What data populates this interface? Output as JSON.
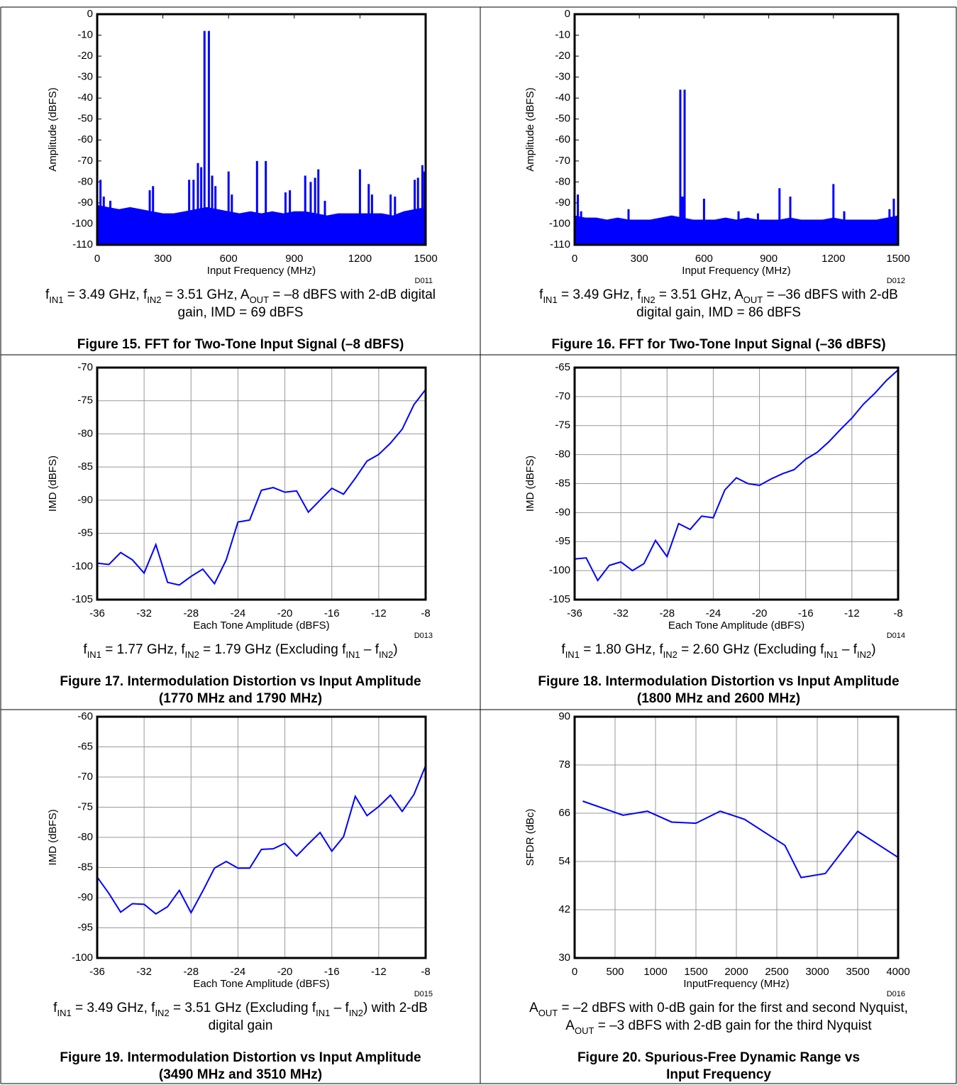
{
  "chart_data": [
    {
      "type": "spectrum",
      "code": "D011",
      "grid": false,
      "color": "#0000ff",
      "xlabel": "Input Frequency (MHz)",
      "ylabel": "Amplitude (dBFS)",
      "xlim": [
        0,
        1500
      ],
      "xticks": [
        0,
        300,
        600,
        900,
        1200,
        1500
      ],
      "ylim": [
        -110,
        0
      ],
      "yticks": [
        0,
        -10,
        -20,
        -30,
        -40,
        -50,
        -60,
        -70,
        -80,
        -90,
        -100,
        -110
      ],
      "noise": {
        "x": [
          0,
          50,
          100,
          150,
          200,
          250,
          300,
          350,
          400,
          450,
          500,
          550,
          600,
          650,
          700,
          750,
          800,
          850,
          900,
          950,
          1000,
          1050,
          1100,
          1150,
          1200,
          1250,
          1300,
          1350,
          1400,
          1450,
          1500
        ],
        "values": [
          -91,
          -92,
          -93,
          -92,
          -93,
          -94,
          -95,
          -95,
          -94,
          -93,
          -92,
          -93,
          -94,
          -95,
          -94,
          -95,
          -94,
          -95,
          -94,
          -94,
          -95,
          -96,
          -95,
          -95,
          -95,
          -95,
          -95,
          -96,
          -94,
          -93,
          -92
        ]
      },
      "spurs": {
        "x": [
          15,
          30,
          60,
          240,
          255,
          420,
          440,
          460,
          475,
          490,
          510,
          525,
          540,
          600,
          615,
          730,
          770,
          860,
          880,
          950,
          975,
          995,
          1010,
          1040,
          1200,
          1240,
          1255,
          1340,
          1360,
          1450,
          1465,
          1485,
          1495
        ],
        "values": [
          -79,
          -87,
          -89,
          -84,
          -82,
          -79,
          -79,
          -71,
          -73,
          -8,
          -8,
          -77,
          -82,
          -75,
          -86,
          -70,
          -70,
          -85,
          -84,
          -77,
          -80,
          -78,
          -74,
          -89,
          -74,
          -81,
          -86,
          -86,
          -87,
          -79,
          -78,
          -72,
          -75
        ]
      },
      "caption": [
        [
          {
            "text": "f"
          },
          {
            "sub": "IN1"
          },
          {
            "text": " = 3.49 GHz, f"
          },
          {
            "sub": "IN2"
          },
          {
            "text": " = 3.51 GHz, A"
          },
          {
            "sub": "OUT"
          },
          {
            "text": " = –8 dBFS with 2-dB digital"
          }
        ],
        [
          {
            "text": "gain, IMD = 69 dBFS"
          }
        ]
      ],
      "title": [
        "Figure 15. FFT for Two-Tone Input Signal (–8 dBFS)"
      ]
    },
    {
      "type": "spectrum",
      "code": "D012",
      "grid": false,
      "color": "#0000ff",
      "xlabel": "Input Frequency (MHz)",
      "ylabel": "Amplitude (dBFS)",
      "xlim": [
        0,
        1500
      ],
      "xticks": [
        0,
        300,
        600,
        900,
        1200,
        1500
      ],
      "ylim": [
        -110,
        0
      ],
      "yticks": [
        0,
        -10,
        -20,
        -30,
        -40,
        -50,
        -60,
        -70,
        -80,
        -90,
        -100,
        -110
      ],
      "noise": {
        "x": [
          0,
          50,
          100,
          150,
          200,
          250,
          300,
          350,
          400,
          450,
          500,
          550,
          600,
          650,
          700,
          750,
          800,
          850,
          900,
          950,
          1000,
          1050,
          1100,
          1150,
          1200,
          1250,
          1300,
          1350,
          1400,
          1450,
          1500
        ],
        "values": [
          -96,
          -97,
          -97,
          -98,
          -97,
          -98,
          -98,
          -98,
          -97,
          -96,
          -97,
          -98,
          -98,
          -98,
          -97,
          -98,
          -97,
          -98,
          -98,
          -98,
          -97,
          -98,
          -98,
          -98,
          -97,
          -98,
          -98,
          -98,
          -98,
          -97,
          -96
        ]
      },
      "spurs": {
        "x": [
          15,
          30,
          250,
          490,
          495,
          505,
          510,
          600,
          760,
          850,
          950,
          1000,
          1200,
          1250,
          1460,
          1480,
          1495
        ],
        "values": [
          -86,
          -94,
          -93,
          -36,
          -87,
          -87,
          -36,
          -88,
          -94,
          -95,
          -83,
          -87,
          -81,
          -94,
          -93,
          -88,
          -97
        ]
      },
      "caption": [
        [
          {
            "text": "f"
          },
          {
            "sub": "IN1"
          },
          {
            "text": " = 3.49 GHz, f"
          },
          {
            "sub": "IN2"
          },
          {
            "text": " = 3.51 GHz, A"
          },
          {
            "sub": "OUT"
          },
          {
            "text": " = –36 dBFS with 2-dB"
          }
        ],
        [
          {
            "text": "digital gain, IMD = 86 dBFS"
          }
        ]
      ],
      "title": [
        "Figure 16. FFT for Two-Tone Input Signal (–36 dBFS)"
      ]
    },
    {
      "type": "line",
      "code": "D013",
      "grid": true,
      "color": "#0000ff",
      "xlabel": "Each Tone Amplitude (dBFS)",
      "ylabel": "IMD (dBFS)",
      "xlim": [
        -36,
        -8
      ],
      "xticks": [
        -36,
        -32,
        -28,
        -24,
        -20,
        -16,
        -12,
        -8
      ],
      "ylim": [
        -105,
        -70
      ],
      "yticks": [
        -70,
        -75,
        -80,
        -85,
        -90,
        -95,
        -100,
        -105
      ],
      "x": [
        -36,
        -35,
        -34,
        -33,
        -32,
        -31,
        -30,
        -29,
        -28,
        -27,
        -26,
        -25,
        -24,
        -23,
        -22,
        -21,
        -20,
        -19,
        -18,
        -17,
        -16,
        -15,
        -14,
        -13,
        -12,
        -11,
        -10,
        -9,
        -8
      ],
      "values": [
        -99.5,
        -99.7,
        -97.9,
        -99,
        -101,
        -96.7,
        -102.4,
        -102.8,
        -101.5,
        -100.4,
        -102.6,
        -99,
        -93.3,
        -93,
        -88.5,
        -88.1,
        -88.8,
        -88.6,
        -91.8,
        -90,
        -88.2,
        -89.1,
        -86.7,
        -84.1,
        -83.1,
        -81.4,
        -79.3,
        -75.6,
        -73.3
      ],
      "caption": [
        [
          {
            "text": "f"
          },
          {
            "sub": "IN1"
          },
          {
            "text": " = 1.77 GHz, f"
          },
          {
            "sub": "IN2"
          },
          {
            "text": " = 1.79 GHz (Excluding f"
          },
          {
            "sub": "IN1"
          },
          {
            "text": " – f"
          },
          {
            "sub": "IN2"
          },
          {
            "text": ")"
          }
        ]
      ],
      "title": [
        "Figure 17. Intermodulation Distortion vs Input Amplitude",
        "(1770 MHz and 1790 MHz)"
      ]
    },
    {
      "type": "line",
      "code": "D014",
      "grid": true,
      "color": "#0000ff",
      "xlabel": "Each Tone Amplitude (dBFS)",
      "ylabel": "IMD (dBFS)",
      "xlim": [
        -36,
        -8
      ],
      "xticks": [
        -36,
        -32,
        -28,
        -24,
        -20,
        -16,
        -12,
        -8
      ],
      "ylim": [
        -105,
        -65
      ],
      "yticks": [
        -65,
        -70,
        -75,
        -80,
        -85,
        -90,
        -95,
        -100,
        -105
      ],
      "x": [
        -36,
        -35,
        -34,
        -33,
        -32,
        -31,
        -30,
        -29,
        -28,
        -27,
        -26,
        -25,
        -24,
        -23,
        -22,
        -21,
        -20,
        -19,
        -18,
        -17,
        -16,
        -15,
        -14,
        -13,
        -12,
        -11,
        -10,
        -9,
        -8
      ],
      "values": [
        -98,
        -97.8,
        -101.7,
        -99.1,
        -98.5,
        -100,
        -98.8,
        -94.8,
        -97.6,
        -91.9,
        -92.9,
        -90.6,
        -90.9,
        -86.1,
        -84,
        -85,
        -85.3,
        -84.2,
        -83.3,
        -82.6,
        -80.8,
        -79.6,
        -77.8,
        -75.7,
        -73.7,
        -71.3,
        -69.4,
        -67.2,
        -65.4
      ],
      "caption": [
        [
          {
            "text": "f"
          },
          {
            "sub": "IN1"
          },
          {
            "text": " = 1.80 GHz, f"
          },
          {
            "sub": "IN2"
          },
          {
            "text": " = 2.60 GHz (Excluding f"
          },
          {
            "sub": "IN1"
          },
          {
            "text": " – f"
          },
          {
            "sub": "IN2"
          },
          {
            "text": ")"
          }
        ]
      ],
      "title": [
        "Figure 18. Intermodulation Distortion vs Input Amplitude",
        "(1800 MHz and 2600 MHz)"
      ]
    },
    {
      "type": "line",
      "code": "D015",
      "grid": true,
      "color": "#0000ff",
      "xlabel": "Each Tone Amplitude (dBFS)",
      "ylabel": "IMD (dBFS)",
      "xlim": [
        -36,
        -8
      ],
      "xticks": [
        -36,
        -32,
        -28,
        -24,
        -20,
        -16,
        -12,
        -8
      ],
      "ylim": [
        -100,
        -60
      ],
      "yticks": [
        -60,
        -65,
        -70,
        -75,
        -80,
        -85,
        -90,
        -95,
        -100
      ],
      "x": [
        -36,
        -35,
        -34,
        -33,
        -32,
        -31,
        -30,
        -29,
        -28,
        -27,
        -26,
        -25,
        -24,
        -23,
        -22,
        -21,
        -20,
        -19,
        -18,
        -17,
        -16,
        -15,
        -14,
        -13,
        -12,
        -11,
        -10,
        -9,
        -8
      ],
      "values": [
        -86.6,
        -89.3,
        -92.4,
        -91,
        -91.1,
        -92.7,
        -91.5,
        -88.8,
        -92.5,
        -88.9,
        -85.1,
        -84,
        -85.1,
        -85.1,
        -82,
        -81.9,
        -81,
        -83.1,
        -81.1,
        -79.2,
        -82.3,
        -79.9,
        -73.2,
        -76.4,
        -74.9,
        -73,
        -75.7,
        -72.9,
        -68.1
      ],
      "caption": [
        [
          {
            "text": "f"
          },
          {
            "sub": "IN1"
          },
          {
            "text": " = 3.49 GHz, f"
          },
          {
            "sub": "IN2"
          },
          {
            "text": " = 3.51 GHz (Excluding f"
          },
          {
            "sub": "IN1"
          },
          {
            "text": " – f"
          },
          {
            "sub": "IN2"
          },
          {
            "text": ") with 2-dB"
          }
        ],
        [
          {
            "text": "digital gain"
          }
        ]
      ],
      "title": [
        "Figure 19. Intermodulation Distortion vs Input Amplitude",
        "(3490 MHz and 3510 MHz)"
      ]
    },
    {
      "type": "line",
      "code": "D016",
      "grid": true,
      "color": "#0000ff",
      "xlabel": "InputFrequency (MHz)",
      "ylabel": "SFDR (dBc)",
      "xlim": [
        0,
        4000
      ],
      "xticks": [
        0,
        500,
        1000,
        1500,
        2000,
        2500,
        3000,
        3500,
        4000
      ],
      "ylim": [
        30,
        90
      ],
      "yticks": [
        30,
        42,
        54,
        66,
        78,
        90
      ],
      "x": [
        100,
        600,
        900,
        1200,
        1500,
        1800,
        2100,
        2600,
        2800,
        3100,
        3500,
        4000
      ],
      "values": [
        69,
        65.5,
        66.5,
        63.8,
        63.5,
        66.5,
        64.5,
        58,
        50,
        51,
        61.5,
        55
      ],
      "caption": [
        [
          {
            "text": "A"
          },
          {
            "sub": "OUT"
          },
          {
            "text": " = –2 dBFS with 0-dB gain for the first and second Nyquist,"
          }
        ],
        [
          {
            "text": "A"
          },
          {
            "sub": "OUT"
          },
          {
            "text": " = –3 dBFS with 2-dB gain for the third Nyquist"
          }
        ]
      ],
      "title": [
        "Figure 20. Spurious-Free Dynamic Range vs",
        "Input Frequency"
      ]
    }
  ]
}
